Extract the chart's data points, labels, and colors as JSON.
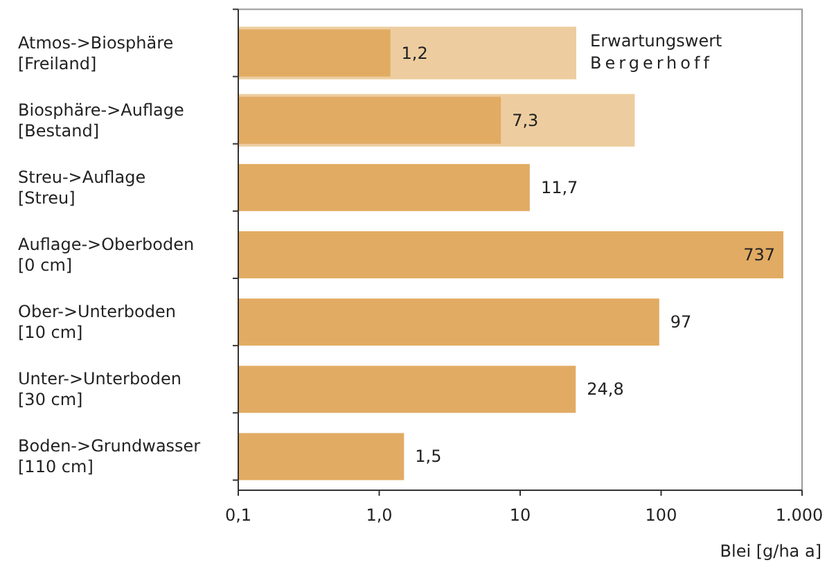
{
  "chart_data": {
    "type": "bar",
    "orientation": "horizontal",
    "log": "x",
    "xlabel": "Blei [g/ha a]",
    "categories": [
      "Atmos->Biosphäre\n[Freiland]",
      "Biosphäre->Auflage\n[Bestand]",
      "Streu->Auflage\n[Streu]",
      "Auflage->Oberboden\n[0 cm]",
      "Ober->Unterboden\n[10 cm]",
      "Unter->Unterboden\n[30 cm]",
      "Boden->Grundwasser\n[110 cm]"
    ],
    "series": [
      {
        "name": "Erwartungswert\nBergerhoff",
        "color": "#edcd9f",
        "values": [
          25,
          65,
          null,
          null,
          null,
          null,
          null
        ]
      },
      {
        "color": "#e2ab63",
        "values": [
          1.2,
          7.3,
          11.7,
          737,
          97,
          24.8,
          1.5
        ],
        "value_labels": [
          "1,2",
          "7,3",
          "11,7",
          "737",
          "97",
          "24,8",
          "1,5"
        ]
      }
    ],
    "xlim": [
      0.1,
      1000
    ],
    "xticks": [
      {
        "value": 0.1,
        "label": "0,1"
      },
      {
        "value": 1,
        "label": "1,0"
      },
      10,
      100,
      {
        "value": 1000,
        "label": "1.000"
      }
    ],
    "grid": false
  }
}
